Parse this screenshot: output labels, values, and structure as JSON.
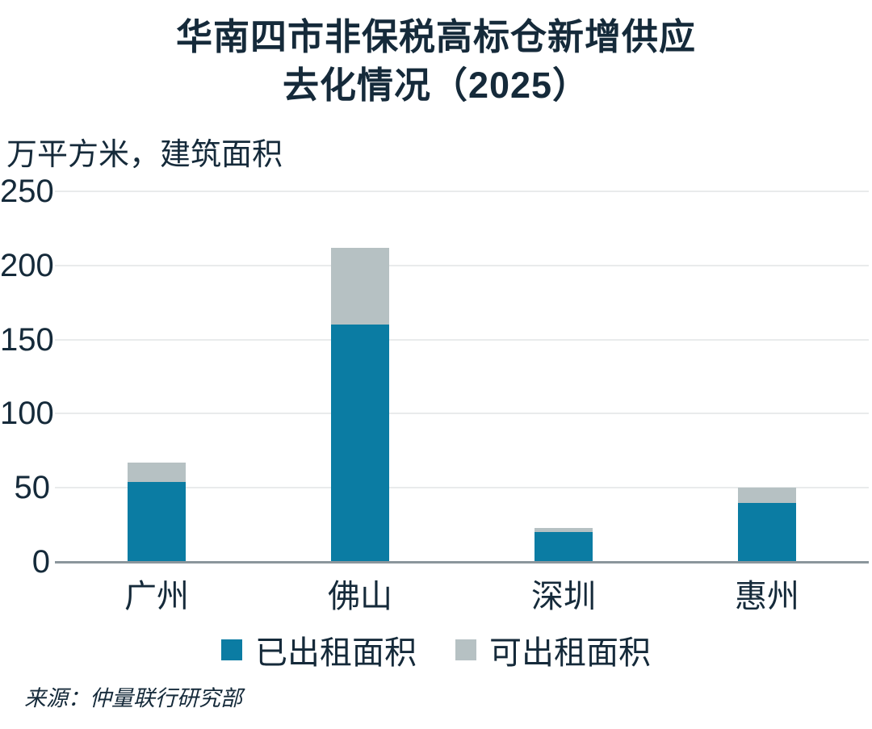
{
  "chart_data": {
    "type": "bar",
    "stacked": true,
    "title_line1": "华南四市非保税高标仓新增供应",
    "title_line2": "去化情况（2025）",
    "units_label": "万平方米，建筑面积",
    "categories": [
      "广州",
      "佛山",
      "深圳",
      "惠州"
    ],
    "series": [
      {
        "name": "已出租面积",
        "color": "#0b7ca3",
        "values": [
          54,
          160,
          20,
          40
        ]
      },
      {
        "name": "可出租面积",
        "color": "#b6c1c3",
        "values": [
          13,
          52,
          3,
          10
        ]
      }
    ],
    "totals": [
      67,
      212,
      23,
      50
    ],
    "y_ticks": [
      0,
      50,
      100,
      150,
      200,
      250
    ],
    "ylim": [
      0,
      250
    ],
    "xlabel": "",
    "ylabel": "万平方米，建筑面积",
    "grid": "horizontal",
    "legend_position": "bottom"
  },
  "source": {
    "text": "来源：仲量联行研究部"
  },
  "colors": {
    "title_text": "#152a3a",
    "axis_text": "#152a3a",
    "leased_bar": "#0b7ca3",
    "leasable_bar": "#b6c1c3",
    "gridline": "#e9ebec",
    "axis_line": "#8b969c",
    "background": "#ffffff"
  }
}
